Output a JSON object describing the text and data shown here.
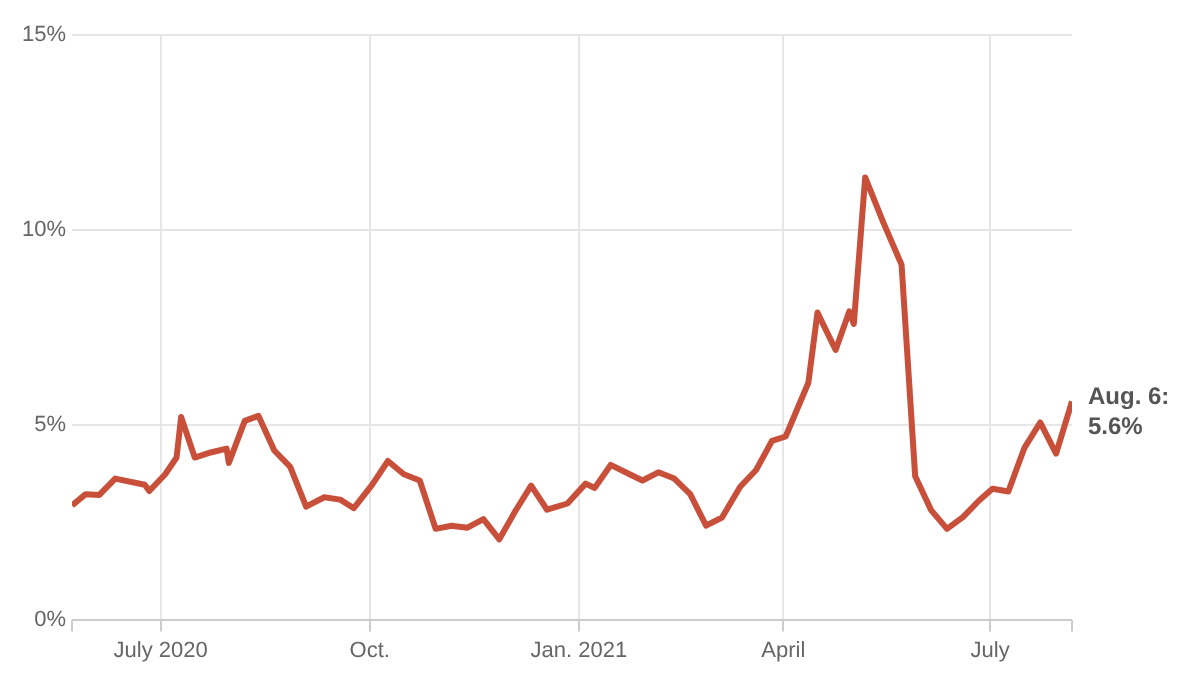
{
  "chart_data": {
    "type": "line",
    "x": [
      "2020-05-23",
      "2020-05-29",
      "2020-06-04",
      "2020-06-11",
      "2020-06-24",
      "2020-06-26",
      "2020-07-03",
      "2020-07-08",
      "2020-07-10",
      "2020-07-16",
      "2020-07-23",
      "2020-07-30",
      "2020-07-31",
      "2020-08-07",
      "2020-08-13",
      "2020-08-20",
      "2020-08-27",
      "2020-09-03",
      "2020-09-11",
      "2020-09-18",
      "2020-09-24",
      "2020-10-02",
      "2020-10-09",
      "2020-10-16",
      "2020-10-23",
      "2020-10-30",
      "2020-11-06",
      "2020-11-13",
      "2020-11-20",
      "2020-11-27",
      "2020-12-04",
      "2020-12-11",
      "2020-12-18",
      "2020-12-27",
      "2021-01-04",
      "2021-01-08",
      "2021-01-15",
      "2021-01-22",
      "2021-01-29",
      "2021-02-05",
      "2021-02-12",
      "2021-02-19",
      "2021-02-26",
      "2021-03-05",
      "2021-03-13",
      "2021-03-20",
      "2021-03-27",
      "2021-04-02",
      "2021-04-12",
      "2021-04-16",
      "2021-04-24",
      "2021-04-30",
      "2021-05-02",
      "2021-05-07",
      "2021-05-15",
      "2021-05-23",
      "2021-05-29",
      "2021-06-05",
      "2021-06-12",
      "2021-06-19",
      "2021-06-26",
      "2021-07-02",
      "2021-07-09",
      "2021-07-16",
      "2021-07-23",
      "2021-07-30",
      "2021-08-06"
    ],
    "series": [
      {
        "color": "#c8503a",
        "values": [
          2.93,
          3.22,
          3.2,
          3.62,
          3.46,
          3.3,
          3.73,
          4.16,
          5.2,
          4.16,
          4.29,
          4.39,
          4.02,
          5.1,
          5.23,
          4.34,
          3.92,
          2.9,
          3.14,
          3.08,
          2.86,
          3.46,
          4.07,
          3.73,
          3.57,
          2.33,
          2.41,
          2.36,
          2.58,
          2.06,
          2.78,
          3.44,
          2.82,
          2.98,
          3.49,
          3.38,
          3.97,
          3.77,
          3.57,
          3.78,
          3.62,
          3.22,
          2.41,
          2.62,
          3.41,
          3.84,
          4.59,
          4.7,
          6.08,
          7.88,
          6.92,
          7.91,
          7.59,
          11.35,
          10.19,
          9.11,
          3.68,
          2.81,
          2.33,
          2.63,
          3.05,
          3.36,
          3.29,
          4.4,
          5.06,
          4.26,
          5.6
        ]
      }
    ],
    "xlim": [
      "2020-05-23",
      "2021-08-06"
    ],
    "xticks": [
      {
        "value": "2020-05-23",
        "label": null
      },
      {
        "value": "2020-07-01",
        "label": "July 2020"
      },
      {
        "value": "2020-10-01",
        "label": "Oct."
      },
      {
        "value": "2021-01-01",
        "label": "Jan. 2021"
      },
      {
        "value": "2021-04-01",
        "label": "April"
      },
      {
        "value": "2021-07-01",
        "label": "July"
      },
      {
        "value": "2021-08-06",
        "label": null
      }
    ],
    "ylim": [
      0,
      15
    ],
    "yticks": [
      {
        "value": 0,
        "label": "0%"
      },
      {
        "value": 5,
        "label": "5%"
      },
      {
        "value": 10,
        "label": "10%"
      },
      {
        "value": 15,
        "label": "15%"
      }
    ],
    "grid": true,
    "marker": "none",
    "line_style": "solid",
    "annotations": [
      {
        "text": "Aug. 6:\n5.6%",
        "x": "2021-08-06",
        "y": 5.6
      }
    ]
  }
}
